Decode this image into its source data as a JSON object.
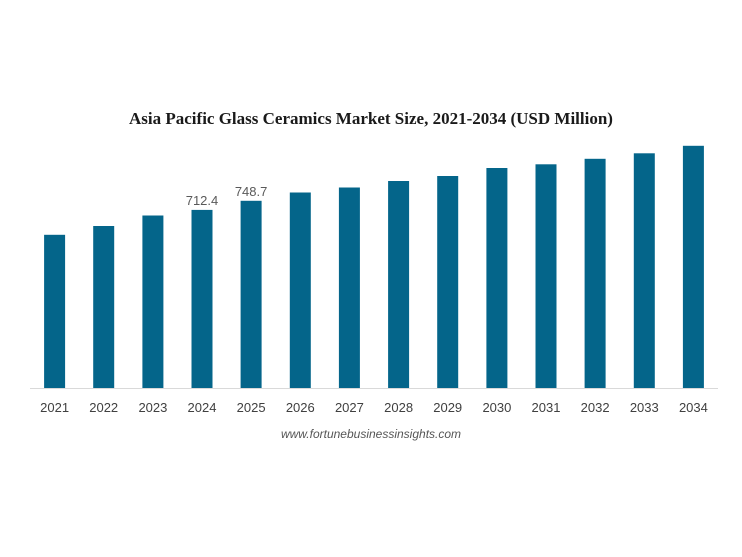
{
  "chart_data": {
    "type": "bar",
    "title": "Asia Pacific Glass Ceramics Market Size, 2021-2034 (USD Million)",
    "categories": [
      "2021",
      "2022",
      "2023",
      "2024",
      "2025",
      "2026",
      "2027",
      "2028",
      "2029",
      "2030",
      "2031",
      "2032",
      "2033",
      "2034"
    ],
    "values": [
      613,
      648,
      690,
      712.4,
      748.7,
      782,
      802,
      828,
      848,
      880,
      895,
      917,
      939,
      969
    ],
    "data_labels": [
      {
        "category": "2024",
        "text": "712.4"
      },
      {
        "category": "2025",
        "text": "748.7"
      }
    ],
    "ylim": [
      0,
      1000
    ],
    "grid": false,
    "legend": "none",
    "bar_color": "#04658a"
  },
  "source": "www.fortunebusinessinsights.com",
  "colors": {
    "bar": "#04658a",
    "axis": "#d9d9d9",
    "tick_text": "#404040",
    "label_text": "#595959"
  }
}
